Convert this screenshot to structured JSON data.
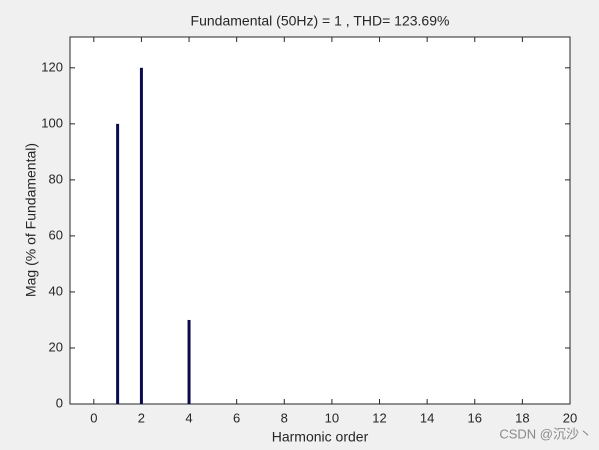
{
  "chart_data": {
    "type": "bar",
    "title": "Fundamental (50Hz) = 1 , THD= 123.69%",
    "x_label": "Harmonic order",
    "y_label": "Mag (% of Fundamental)",
    "x": [
      0,
      1,
      2,
      3,
      4,
      5,
      6,
      7,
      8,
      9,
      10,
      11,
      12,
      13,
      14,
      15,
      16,
      17,
      18,
      19,
      20
    ],
    "values": [
      0,
      100,
      120,
      0,
      30,
      0,
      0,
      0,
      0,
      0,
      0,
      0,
      0,
      0,
      0,
      0,
      0,
      0,
      0,
      0,
      0
    ],
    "color": "#0b0b4f",
    "xlim": [
      -1,
      20
    ],
    "ylim": [
      0,
      131
    ],
    "xticks": [
      0,
      2,
      4,
      6,
      8,
      10,
      12,
      14,
      16,
      18,
      20
    ],
    "yticks": [
      0,
      20,
      40,
      60,
      80,
      100,
      120
    ],
    "watermark": "CSDN @沉沙丶"
  }
}
